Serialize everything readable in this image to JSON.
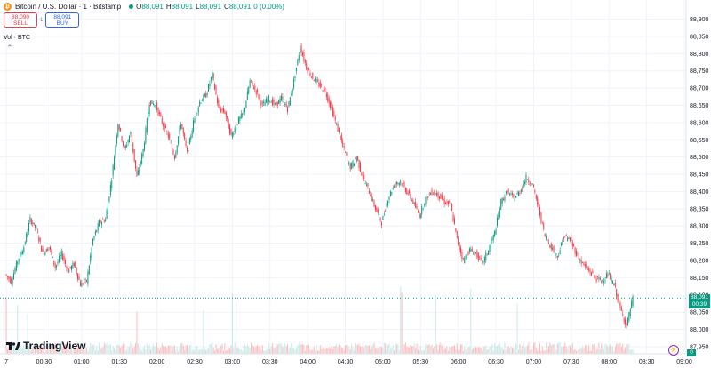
{
  "legend": {
    "symbol": "Bitcoin / U.S. Dollar · 1 · Bitstamp",
    "o_label": "O",
    "o": "88,091",
    "h_label": "H",
    "h": "88,091",
    "l_label": "L",
    "l": "88,091",
    "c_label": "C",
    "c": "88,091",
    "change": "0 (0.00%)"
  },
  "trade": {
    "sell_price": "88,090",
    "sell_label": "SELL",
    "spread": "1",
    "buy_price": "88,091",
    "buy_label": "BUY"
  },
  "volume_label": "Vol · BTC",
  "price_badge": {
    "price": "88,091",
    "countdown": "00:39"
  },
  "volume_badge": "0",
  "brand": "TradingView",
  "colors": {
    "up": "#089981",
    "down": "#f23645",
    "grid": "#f0f3fa"
  },
  "chart_data": {
    "type": "candlestick",
    "price_ticks": [
      "88,900",
      "88,850",
      "88,800",
      "88,750",
      "88,700",
      "88,650",
      "88,600",
      "88,550",
      "88,500",
      "88,450",
      "88,400",
      "88,350",
      "88,300",
      "88,250",
      "88,200",
      "88,150",
      "88,100",
      "88,050",
      "88,000",
      "87,950"
    ],
    "price_tick_values": [
      88900,
      88850,
      88800,
      88750,
      88700,
      88650,
      88600,
      88550,
      88500,
      88450,
      88400,
      88350,
      88300,
      88250,
      88200,
      88150,
      88100,
      88050,
      88000,
      87950
    ],
    "ylim": [
      87950,
      88940
    ],
    "time_ticks": [
      "7",
      "00:30",
      "01:00",
      "01:30",
      "02:00",
      "02:30",
      "03:00",
      "03:30",
      "04:00",
      "04:30",
      "05:00",
      "05:30",
      "06:00",
      "06:30",
      "07:00",
      "07:30",
      "08:00",
      "08:30",
      "09:00"
    ],
    "time_tick_minutes": [
      0,
      30,
      60,
      90,
      120,
      150,
      180,
      210,
      240,
      270,
      300,
      330,
      360,
      390,
      420,
      450,
      480,
      510,
      540
    ],
    "xlim": [
      -5,
      540
    ],
    "last_price": 88091,
    "series": [
      {
        "t": 0,
        "v": 88160
      },
      {
        "t": 5,
        "v": 88140
      },
      {
        "t": 10,
        "v": 88200
      },
      {
        "t": 15,
        "v": 88240
      },
      {
        "t": 20,
        "v": 88320
      },
      {
        "t": 25,
        "v": 88290
      },
      {
        "t": 30,
        "v": 88220
      },
      {
        "t": 35,
        "v": 88240
      },
      {
        "t": 40,
        "v": 88180
      },
      {
        "t": 45,
        "v": 88220
      },
      {
        "t": 50,
        "v": 88170
      },
      {
        "t": 55,
        "v": 88190
      },
      {
        "t": 60,
        "v": 88130
      },
      {
        "t": 65,
        "v": 88140
      },
      {
        "t": 70,
        "v": 88260
      },
      {
        "t": 75,
        "v": 88310
      },
      {
        "t": 80,
        "v": 88320
      },
      {
        "t": 85,
        "v": 88440
      },
      {
        "t": 90,
        "v": 88600
      },
      {
        "t": 95,
        "v": 88520
      },
      {
        "t": 100,
        "v": 88570
      },
      {
        "t": 105,
        "v": 88440
      },
      {
        "t": 110,
        "v": 88520
      },
      {
        "t": 115,
        "v": 88660
      },
      {
        "t": 120,
        "v": 88650
      },
      {
        "t": 125,
        "v": 88600
      },
      {
        "t": 130,
        "v": 88560
      },
      {
        "t": 135,
        "v": 88500
      },
      {
        "t": 140,
        "v": 88600
      },
      {
        "t": 145,
        "v": 88510
      },
      {
        "t": 150,
        "v": 88600
      },
      {
        "t": 155,
        "v": 88660
      },
      {
        "t": 160,
        "v": 88680
      },
      {
        "t": 165,
        "v": 88740
      },
      {
        "t": 170,
        "v": 88640
      },
      {
        "t": 175,
        "v": 88630
      },
      {
        "t": 180,
        "v": 88560
      },
      {
        "t": 185,
        "v": 88600
      },
      {
        "t": 190,
        "v": 88630
      },
      {
        "t": 195,
        "v": 88720
      },
      {
        "t": 200,
        "v": 88690
      },
      {
        "t": 205,
        "v": 88650
      },
      {
        "t": 210,
        "v": 88670
      },
      {
        "t": 215,
        "v": 88650
      },
      {
        "t": 220,
        "v": 88670
      },
      {
        "t": 225,
        "v": 88640
      },
      {
        "t": 230,
        "v": 88720
      },
      {
        "t": 235,
        "v": 88820
      },
      {
        "t": 240,
        "v": 88760
      },
      {
        "t": 245,
        "v": 88730
      },
      {
        "t": 250,
        "v": 88710
      },
      {
        "t": 255,
        "v": 88690
      },
      {
        "t": 260,
        "v": 88640
      },
      {
        "t": 265,
        "v": 88580
      },
      {
        "t": 270,
        "v": 88520
      },
      {
        "t": 275,
        "v": 88470
      },
      {
        "t": 280,
        "v": 88500
      },
      {
        "t": 285,
        "v": 88440
      },
      {
        "t": 290,
        "v": 88400
      },
      {
        "t": 295,
        "v": 88350
      },
      {
        "t": 300,
        "v": 88310
      },
      {
        "t": 305,
        "v": 88380
      },
      {
        "t": 310,
        "v": 88420
      },
      {
        "t": 315,
        "v": 88430
      },
      {
        "t": 320,
        "v": 88400
      },
      {
        "t": 325,
        "v": 88370
      },
      {
        "t": 330,
        "v": 88330
      },
      {
        "t": 335,
        "v": 88380
      },
      {
        "t": 340,
        "v": 88400
      },
      {
        "t": 345,
        "v": 88390
      },
      {
        "t": 350,
        "v": 88370
      },
      {
        "t": 355,
        "v": 88360
      },
      {
        "t": 360,
        "v": 88260
      },
      {
        "t": 365,
        "v": 88200
      },
      {
        "t": 370,
        "v": 88230
      },
      {
        "t": 375,
        "v": 88220
      },
      {
        "t": 380,
        "v": 88190
      },
      {
        "t": 385,
        "v": 88230
      },
      {
        "t": 390,
        "v": 88280
      },
      {
        "t": 395,
        "v": 88370
      },
      {
        "t": 400,
        "v": 88400
      },
      {
        "t": 405,
        "v": 88380
      },
      {
        "t": 410,
        "v": 88400
      },
      {
        "t": 415,
        "v": 88440
      },
      {
        "t": 420,
        "v": 88420
      },
      {
        "t": 425,
        "v": 88350
      },
      {
        "t": 430,
        "v": 88270
      },
      {
        "t": 435,
        "v": 88240
      },
      {
        "t": 440,
        "v": 88210
      },
      {
        "t": 445,
        "v": 88270
      },
      {
        "t": 450,
        "v": 88260
      },
      {
        "t": 455,
        "v": 88220
      },
      {
        "t": 460,
        "v": 88190
      },
      {
        "t": 465,
        "v": 88170
      },
      {
        "t": 470,
        "v": 88150
      },
      {
        "t": 475,
        "v": 88140
      },
      {
        "t": 480,
        "v": 88160
      },
      {
        "t": 485,
        "v": 88130
      },
      {
        "t": 490,
        "v": 88060
      },
      {
        "t": 495,
        "v": 88010
      },
      {
        "t": 500,
        "v": 88091
      }
    ]
  }
}
